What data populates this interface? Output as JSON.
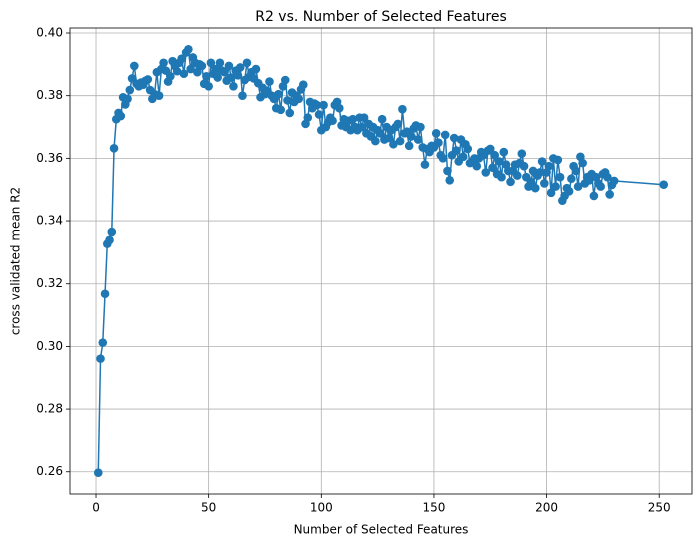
{
  "chart_data": {
    "type": "line",
    "title": "R2 vs. Number of Selected Features",
    "x_label": "Number of Selected Features",
    "y_label": "cross validated mean R2",
    "color": "#1f77b4",
    "grid": true,
    "markers": true,
    "xlim": [
      -11.55,
      264.55
    ],
    "ylim": [
      0.2529,
      0.4016
    ],
    "xticks": [
      0,
      50,
      100,
      150,
      200,
      250
    ],
    "yticks": [
      0.26,
      0.28,
      {
        "value": 0.3,
        "label": "0.30"
      },
      0.32,
      0.34,
      0.36,
      0.38,
      {
        "value": 0.4,
        "label": "0.40"
      }
    ],
    "x": [
      1,
      2,
      3,
      4,
      5,
      6,
      7,
      8,
      9,
      10,
      11,
      12,
      13,
      14,
      15,
      16,
      17,
      18,
      19,
      20,
      21,
      22,
      23,
      24,
      25,
      26,
      27,
      28,
      29,
      30,
      31,
      32,
      33,
      34,
      35,
      36,
      37,
      38,
      39,
      40,
      41,
      42,
      43,
      44,
      45,
      46,
      47,
      48,
      49,
      50,
      51,
      52,
      53,
      54,
      55,
      56,
      57,
      58,
      59,
      60,
      61,
      62,
      63,
      64,
      65,
      66,
      67,
      68,
      69,
      70,
      71,
      72,
      73,
      74,
      75,
      76,
      77,
      78,
      79,
      80,
      81,
      82,
      83,
      84,
      85,
      86,
      87,
      88,
      89,
      90,
      91,
      92,
      93,
      94,
      95,
      96,
      97,
      98,
      99,
      100,
      101,
      102,
      103,
      104,
      105,
      106,
      107,
      108,
      109,
      110,
      111,
      112,
      113,
      114,
      115,
      116,
      117,
      118,
      119,
      120,
      121,
      122,
      123,
      124,
      125,
      126,
      127,
      128,
      129,
      130,
      131,
      132,
      133,
      134,
      135,
      136,
      137,
      138,
      139,
      140,
      141,
      142,
      143,
      144,
      145,
      146,
      147,
      148,
      149,
      150,
      151,
      152,
      153,
      154,
      155,
      156,
      157,
      158,
      159,
      160,
      161,
      162,
      163,
      164,
      165,
      166,
      167,
      168,
      169,
      170,
      171,
      172,
      173,
      174,
      175,
      176,
      177,
      178,
      179,
      180,
      181,
      182,
      183,
      184,
      185,
      186,
      187,
      188,
      189,
      190,
      191,
      192,
      193,
      194,
      195,
      196,
      197,
      198,
      199,
      200,
      201,
      202,
      203,
      204,
      205,
      206,
      207,
      208,
      209,
      210,
      211,
      212,
      213,
      214,
      215,
      216,
      217,
      218,
      219,
      220,
      221,
      222,
      223,
      224,
      225,
      226,
      227,
      228,
      229,
      230,
      252
    ],
    "values": [
      0.2597,
      0.2961,
      0.3012,
      0.3168,
      0.3328,
      0.334,
      0.3365,
      0.3632,
      0.3725,
      0.3745,
      0.3735,
      0.3795,
      0.3772,
      0.379,
      0.3818,
      0.3855,
      0.3895,
      0.3838,
      0.383,
      0.3842,
      0.3835,
      0.3848,
      0.3852,
      0.3818,
      0.379,
      0.3805,
      0.3875,
      0.38,
      0.3885,
      0.3905,
      0.388,
      0.3845,
      0.3862,
      0.391,
      0.3895,
      0.3878,
      0.3905,
      0.3918,
      0.387,
      0.3938,
      0.3948,
      0.3885,
      0.3922,
      0.3905,
      0.3875,
      0.39,
      0.3895,
      0.3838,
      0.3862,
      0.383,
      0.3905,
      0.387,
      0.3885,
      0.3858,
      0.3905,
      0.388,
      0.3875,
      0.3848,
      0.3895,
      0.3858,
      0.383,
      0.388,
      0.3865,
      0.389,
      0.38,
      0.385,
      0.3905,
      0.386,
      0.3875,
      0.3855,
      0.3885,
      0.384,
      0.3795,
      0.3825,
      0.3805,
      0.3815,
      0.3845,
      0.38,
      0.379,
      0.376,
      0.3805,
      0.3755,
      0.383,
      0.385,
      0.3785,
      0.3745,
      0.381,
      0.378,
      0.38,
      0.379,
      0.382,
      0.3835,
      0.371,
      0.373,
      0.378,
      0.376,
      0.3775,
      0.377,
      0.374,
      0.369,
      0.377,
      0.37,
      0.3715,
      0.373,
      0.372,
      0.377,
      0.378,
      0.376,
      0.3705,
      0.3725,
      0.37,
      0.372,
      0.369,
      0.3725,
      0.37,
      0.369,
      0.373,
      0.37,
      0.373,
      0.368,
      0.371,
      0.367,
      0.37,
      0.3655,
      0.369,
      0.368,
      0.3725,
      0.366,
      0.37,
      0.3665,
      0.369,
      0.3645,
      0.37,
      0.371,
      0.3655,
      0.3757,
      0.368,
      0.3685,
      0.364,
      0.367,
      0.3695,
      0.3705,
      0.366,
      0.37,
      0.3635,
      0.358,
      0.363,
      0.362,
      0.364,
      0.3635,
      0.368,
      0.365,
      0.361,
      0.36,
      0.3675,
      0.356,
      0.353,
      0.361,
      0.3665,
      0.3625,
      0.359,
      0.366,
      0.3605,
      0.3645,
      0.363,
      0.3585,
      0.359,
      0.36,
      0.3575,
      0.36,
      0.362,
      0.361,
      0.3555,
      0.3625,
      0.363,
      0.357,
      0.361,
      0.355,
      0.359,
      0.354,
      0.362,
      0.358,
      0.356,
      0.3525,
      0.356,
      0.358,
      0.3545,
      0.3585,
      0.3615,
      0.3575,
      0.354,
      0.351,
      0.3525,
      0.356,
      0.3505,
      0.3545,
      0.3555,
      0.359,
      0.352,
      0.3555,
      0.3575,
      0.349,
      0.36,
      0.351,
      0.3595,
      0.354,
      0.3465,
      0.348,
      0.3505,
      0.3495,
      0.3535,
      0.3575,
      0.356,
      0.351,
      0.3605,
      0.3585,
      0.352,
      0.354,
      0.353,
      0.355,
      0.348,
      0.354,
      0.352,
      0.351,
      0.355,
      0.3555,
      0.354,
      0.3485,
      0.3515,
      0.3528,
      0.3516
    ]
  }
}
